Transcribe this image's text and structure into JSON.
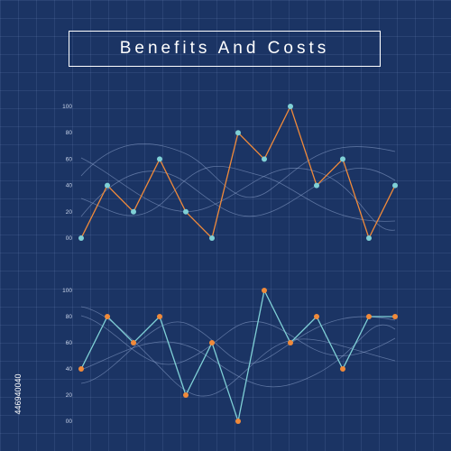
{
  "title": "Benefits And Costs",
  "watermark_id": "446940040",
  "colors": {
    "background": "#1b3464",
    "orange": "#f08a3a",
    "teal": "#7fd0d6",
    "curve": "#8fa6cf"
  },
  "chart_data": [
    {
      "type": "line",
      "title": "",
      "y_ticks": [
        "100",
        "80",
        "60",
        "40",
        "20",
        "00"
      ],
      "ylim": [
        0,
        100
      ],
      "grid": true,
      "line_color": "#f08a3a",
      "marker_color": "#7fd0d6",
      "series": [
        {
          "values": [
            0,
            40,
            20,
            60,
            20,
            0,
            80,
            60,
            100,
            40,
            60,
            0,
            40
          ]
        }
      ]
    },
    {
      "type": "line",
      "title": "",
      "y_ticks": [
        "100",
        "80",
        "60",
        "40",
        "20",
        "00"
      ],
      "ylim": [
        0,
        100
      ],
      "grid": true,
      "line_color": "#7fd0d6",
      "marker_color": "#f08a3a",
      "series": [
        {
          "values": [
            40,
            80,
            60,
            80,
            20,
            60,
            0,
            100,
            60,
            80,
            40,
            80,
            80
          ]
        }
      ]
    }
  ]
}
